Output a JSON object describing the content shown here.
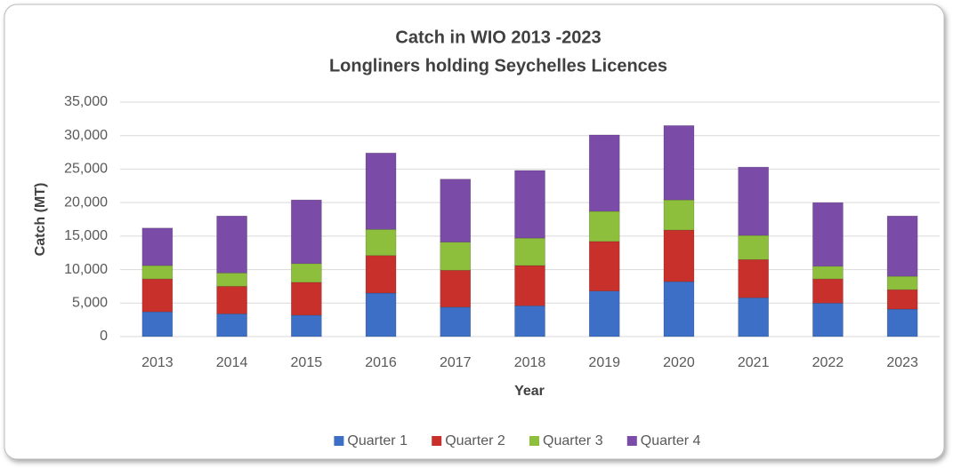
{
  "chart_data": {
    "type": "stacked_bar",
    "title": "Catch in WIO 2013 -2023",
    "subtitle": "Longliners holding Seychelles Licences",
    "x_label": "Year",
    "y_label": "Catch (MT)",
    "categories": [
      "2013",
      "2014",
      "2015",
      "2016",
      "2017",
      "2018",
      "2019",
      "2020",
      "2021",
      "2022",
      "2023"
    ],
    "series": [
      {
        "name": "Quarter 1",
        "color": "#3d6fc6",
        "values": [
          3700,
          3400,
          3200,
          6500,
          4400,
          4600,
          6800,
          8200,
          5800,
          5000,
          4100
        ]
      },
      {
        "name": "Quarter 2",
        "color": "#c8302c",
        "values": [
          4900,
          4100,
          4900,
          5600,
          5500,
          6000,
          7400,
          7700,
          5700,
          3600,
          2900
        ]
      },
      {
        "name": "Quarter 3",
        "color": "#8dbf3c",
        "values": [
          2000,
          2000,
          2800,
          3900,
          4200,
          4100,
          4500,
          4500,
          3600,
          1900,
          2000
        ]
      },
      {
        "name": "Quarter 4",
        "color": "#7b4ba8",
        "values": [
          5600,
          8500,
          9500,
          11400,
          9400,
          10100,
          11400,
          11100,
          10200,
          9500,
          9000
        ]
      }
    ],
    "ylim": [
      0,
      35000
    ],
    "yticks": [
      0,
      {
        "value": 5000,
        "label": "5,000"
      },
      {
        "value": 10000,
        "label": "10,000"
      },
      {
        "value": 15000,
        "label": "15,000"
      },
      {
        "value": 20000,
        "label": "20,000"
      },
      {
        "value": 25000,
        "label": "25,000"
      },
      {
        "value": 30000,
        "label": "30,000"
      },
      {
        "value": 35000,
        "label": "35,000"
      }
    ],
    "grid": true,
    "legend": "bottom"
  }
}
